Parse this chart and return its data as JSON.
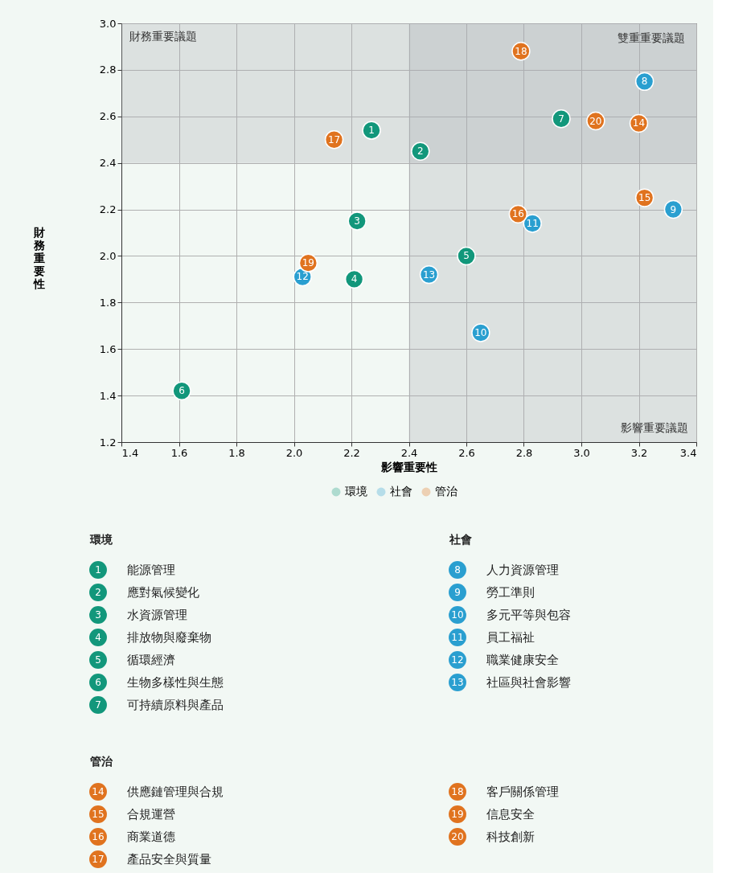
{
  "chart_data": {
    "type": "scatter",
    "xlabel": "影響重要性",
    "ylabel": "財務重要性",
    "xlim": [
      1.4,
      3.4
    ],
    "xticks": [
      {
        "value": 1.4,
        "label": "1.4"
      },
      {
        "value": 1.6,
        "label": "1.6"
      },
      {
        "value": 1.8,
        "label": "1.8"
      },
      {
        "value": 2.0,
        "label": "2.0"
      },
      {
        "value": 2.2,
        "label": "2.2"
      },
      {
        "value": 2.4,
        "label": "2.4"
      },
      {
        "value": 2.6,
        "label": "2.6"
      },
      {
        "value": 2.8,
        "label": "2.8"
      },
      {
        "value": 3.0,
        "label": "3.0"
      },
      {
        "value": 3.2,
        "label": "3.2"
      },
      {
        "value": 3.4,
        "label": "3.4"
      }
    ],
    "ylim": [
      1.2,
      3.0
    ],
    "yticks": [
      {
        "value": 1.2,
        "label": "1.2"
      },
      {
        "value": 1.4,
        "label": "1.4"
      },
      {
        "value": 1.6,
        "label": "1.6"
      },
      {
        "value": 1.8,
        "label": "1.8"
      },
      {
        "value": 2.0,
        "label": "2.0"
      },
      {
        "value": 2.2,
        "label": "2.2"
      },
      {
        "value": 2.4,
        "label": "2.4"
      },
      {
        "value": 2.6,
        "label": "2.6"
      },
      {
        "value": 2.8,
        "label": "2.8"
      },
      {
        "value": 3.0,
        "label": "3.0"
      }
    ],
    "grid": true,
    "legend": "bottom",
    "marker": "circle",
    "bands": [
      {
        "axis": "y",
        "from": 2.4,
        "to": 3.0,
        "label": "財務重要議題",
        "color": "#a9abb3"
      },
      {
        "axis": "x",
        "from": 2.4,
        "to": 3.4,
        "label": "影響重要議題",
        "color": "#a9abb3"
      }
    ],
    "series": [
      {
        "name": "環境",
        "color": "#12977b",
        "x": [
          2.27,
          2.44,
          2.22,
          2.21,
          2.6,
          1.61,
          2.93
        ],
        "values": [
          2.54,
          2.45,
          2.15,
          1.9,
          2.0,
          1.42,
          2.59
        ]
      },
      {
        "name": "社會",
        "color": "#2a9fd0",
        "x": [
          3.22,
          3.32,
          2.65,
          2.83,
          2.03,
          2.47
        ],
        "values": [
          2.75,
          2.2,
          1.67,
          2.14,
          1.91,
          1.92
        ]
      },
      {
        "name": "管治",
        "color": "#e0731f",
        "x": [
          3.2,
          3.22,
          2.78,
          2.14,
          2.79,
          2.05,
          3.05
        ],
        "values": [
          2.57,
          2.25,
          2.18,
          2.5,
          2.88,
          1.97,
          2.58
        ]
      }
    ],
    "annotations": [
      "雙重重要議題",
      {
        "text": "1",
        "x": 2.27,
        "y": 2.54
      },
      {
        "text": "2",
        "x": 2.44,
        "y": 2.45
      },
      {
        "text": "3",
        "x": 2.22,
        "y": 2.15
      },
      {
        "text": "4",
        "x": 2.21,
        "y": 1.9
      },
      {
        "text": "5",
        "x": 2.6,
        "y": 2.0
      },
      {
        "text": "6",
        "x": 1.61,
        "y": 1.42
      },
      {
        "text": "7",
        "x": 2.93,
        "y": 2.59
      },
      {
        "text": "8",
        "x": 3.22,
        "y": 2.75
      },
      {
        "text": "9",
        "x": 3.32,
        "y": 2.2
      },
      {
        "text": "10",
        "x": 2.65,
        "y": 1.67
      },
      {
        "text": "11",
        "x": 2.83,
        "y": 2.14
      },
      {
        "text": "12",
        "x": 2.03,
        "y": 1.91
      },
      {
        "text": "13",
        "x": 2.47,
        "y": 1.92
      },
      {
        "text": "14",
        "x": 3.2,
        "y": 2.57
      },
      {
        "text": "15",
        "x": 3.22,
        "y": 2.25
      },
      {
        "text": "16",
        "x": 2.78,
        "y": 2.18
      },
      {
        "text": "17",
        "x": 2.14,
        "y": 2.5
      },
      {
        "text": "18",
        "x": 2.79,
        "y": 2.88
      },
      {
        "text": "19",
        "x": 2.05,
        "y": 1.97
      },
      {
        "text": "20",
        "x": 3.05,
        "y": 2.58
      },
      "能源管理",
      "應對氣候變化",
      "水資源管理",
      "排放物與廢棄物",
      "循環經濟",
      "生物多樣性與生態",
      "可持續原料與產品",
      "人力資源管理",
      "勞工準則",
      "多元平等與包容",
      "員工福祉",
      "職業健康安全",
      "社區與社會影響",
      "供應鏈管理與合規",
      "合規運營",
      "商業道德",
      "產品安全與質量",
      "客戶關係管理",
      "信息安全",
      "科技創新"
    ]
  }
}
